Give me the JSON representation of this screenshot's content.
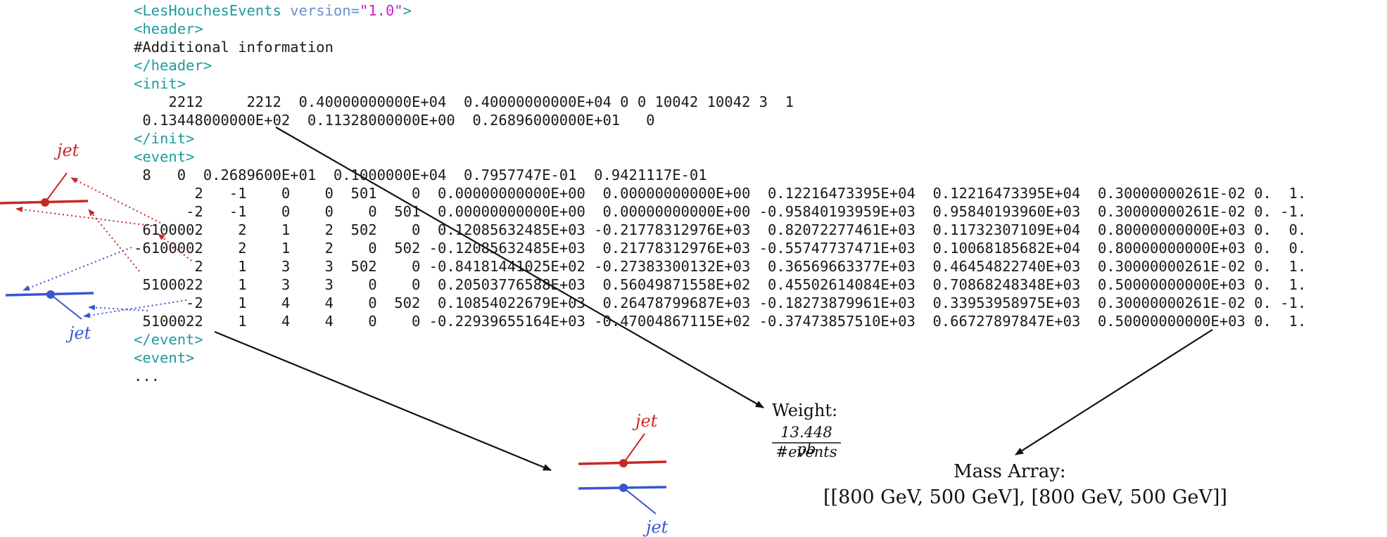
{
  "code": {
    "root_open_tag": "<LesHouchesEvents",
    "root_attr_name": " version=",
    "root_attr_value": "\"1.0\"",
    "root_close_bracket": ">",
    "header_open": "<header>",
    "header_text": "#Additional information",
    "header_close": "</header>",
    "init_open": "<init>",
    "init_line1": "    2212     2212  0.40000000000E+04  0.40000000000E+04 0 0 10042 10042 3  1",
    "init_line2": " 0.13448000000E+02  0.11328000000E+00  0.26896000000E+01   0",
    "init_close": "</init>",
    "event_open": "<event>",
    "event_header": " 8   0  0.2689600E+01  0.1000000E+04  0.7957747E-01  0.9421117E-01",
    "particle_rows": [
      "       2   -1    0    0  501    0  0.00000000000E+00  0.00000000000E+00  0.12216473395E+04  0.12216473395E+04  0.30000000261E-02 0.  1.",
      "      -2   -1    0    0    0  501  0.00000000000E+00  0.00000000000E+00 -0.95840193959E+03  0.95840193960E+03  0.30000000261E-02 0. -1.",
      " 6100002    2    1    2  502    0  0.12085632485E+03 -0.21778312976E+03  0.82072277461E+03  0.11732307109E+04  0.80000000000E+03 0.  0.",
      "-6100002    2    1    2    0  502 -0.12085632485E+03  0.21778312976E+03 -0.55747737471E+03  0.10068185682E+04  0.80000000000E+03 0.  0.",
      "       2    1    3    3  502    0 -0.84181441025E+02 -0.27383300132E+03  0.36569663377E+03  0.46454822740E+03  0.30000000261E-02 0.  1.",
      " 5100022    1    3    3    0    0  0.20503776588E+03  0.56049871558E+02  0.45502614084E+03  0.70868248348E+03  0.50000000000E+03 0.  1.",
      "      -2    1    4    4    0  502  0.10854022679E+03  0.26478799687E+03 -0.18273879961E+03  0.33953958975E+03  0.30000000261E-02 0. -1.",
      " 5100022    1    4    4    0    0 -0.22939655164E+03 -0.47004867115E+02 -0.37473857510E+03  0.66727897847E+03  0.50000000000E+03 0.  1."
    ],
    "event_close": "</event>",
    "event_open_next": "<event>",
    "ellipsis": "..."
  },
  "annotations": {
    "jet_left_top": "jet",
    "jet_left_bottom": "jet",
    "jet_bottom_top": "jet",
    "jet_bottom_bottom": "jet",
    "weight_label": "Weight:",
    "weight_numerator": "13.448 pb",
    "weight_denominator": "#events",
    "mass_label": "Mass Array:",
    "mass_value": "[[800 GeV, 500 GeV], [800 GeV, 500 GeV]]"
  },
  "colors": {
    "tag": "#1e9a9e",
    "attribute_value": "#c81ec8",
    "jet_red": "#c62828",
    "jet_blue": "#3a55d0",
    "arrow": "#111111"
  }
}
